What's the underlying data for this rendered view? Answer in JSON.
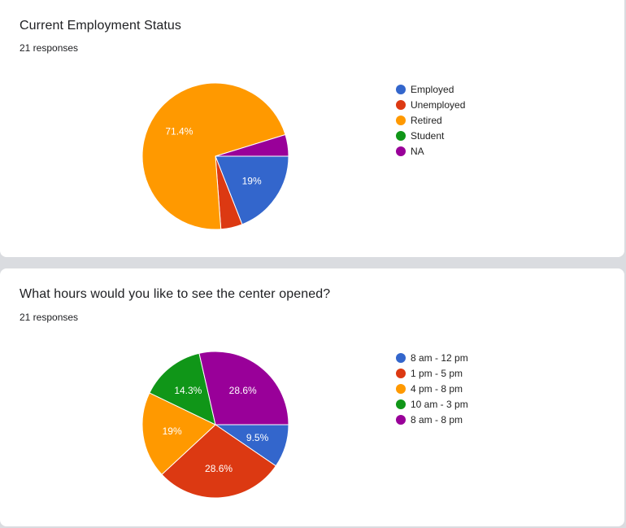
{
  "chart_data": [
    {
      "type": "pie",
      "title": "Current Employment Status",
      "subtitle": "21 responses",
      "categories": [
        "Employed",
        "Unemployed",
        "Retired",
        "Student",
        "NA"
      ],
      "values": [
        4,
        1,
        15,
        0,
        1
      ],
      "labels": [
        "19%",
        "",
        "71.4%",
        "",
        ""
      ],
      "colors": [
        "#3366cc",
        "#dc3912",
        "#ff9900",
        "#109618",
        "#990099"
      ],
      "legend": "right"
    },
    {
      "type": "pie",
      "title": "What hours would you like to see the center opened?",
      "subtitle": "21 responses",
      "categories": [
        "8 am - 12 pm",
        "1 pm - 5 pm",
        "4 pm - 8 pm",
        "10 am - 3 pm",
        "8 am - 8 pm"
      ],
      "values": [
        2,
        6,
        4,
        3,
        6
      ],
      "labels": [
        "9.5%",
        "28.6%",
        "19%",
        "14.3%",
        "28.6%"
      ],
      "colors": [
        "#3366cc",
        "#dc3912",
        "#ff9900",
        "#109618",
        "#990099"
      ],
      "legend": "right"
    }
  ]
}
